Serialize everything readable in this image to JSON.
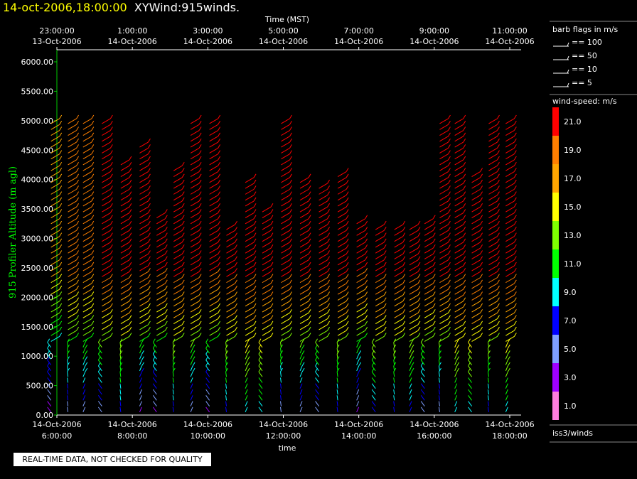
{
  "header": {
    "date": "14-oct-2006,18:00:00",
    "name": "XYWind:915winds."
  },
  "disclaimer": "REAL-TIME DATA, NOT CHECKED FOR QUALITY",
  "legend": {
    "barbs_title": "barb flags in m/s",
    "barbs": [
      "== 100",
      "== 50",
      "== 10",
      "== 5"
    ],
    "speed_title": "wind-speed: m/s",
    "speed_bins": [
      {
        "label": "21.0",
        "color": "#ff0000"
      },
      {
        "label": "19.0",
        "color": "#ff7f00"
      },
      {
        "label": "17.0",
        "color": "#ffa500"
      },
      {
        "label": "15.0",
        "color": "#ffff00"
      },
      {
        "label": "13.0",
        "color": "#7fff00"
      },
      {
        "label": "11.0",
        "color": "#00ff00"
      },
      {
        "label": "9.0",
        "color": "#00ffff"
      },
      {
        "label": "7.0",
        "color": "#0000ff"
      },
      {
        "label": "5.0",
        "color": "#7f9fff"
      },
      {
        "label": "3.0",
        "color": "#9f00ff"
      },
      {
        "label": "1.0",
        "color": "#ff7fdf"
      }
    ],
    "source": "iss3/winds"
  },
  "chart_data": {
    "type": "wind-barb time-height",
    "ylabel": "915 Profiler Altitude (m agl)",
    "xlabel": "time",
    "top_axis_title": "Time (MST)",
    "ylim": [
      0,
      6200
    ],
    "yticks": [
      "0.00",
      "500.00",
      "1000.00",
      "1500.00",
      "2000.00",
      "2500.00",
      "3000.00",
      "3500.00",
      "4000.00",
      "4500.00",
      "5000.00",
      "5500.00",
      "6000.00"
    ],
    "bottom_ticks": [
      {
        "date": "14-Oct-2006",
        "time": "6:00:00"
      },
      {
        "date": "14-Oct-2006",
        "time": "8:00:00"
      },
      {
        "date": "14-Oct-2006",
        "time": "10:00:00"
      },
      {
        "date": "14-Oct-2006",
        "time": "12:00:00"
      },
      {
        "date": "14-Oct-2006",
        "time": "14:00:00"
      },
      {
        "date": "14-Oct-2006",
        "time": "16:00:00"
      },
      {
        "date": "14-Oct-2006",
        "time": "18:00:00"
      }
    ],
    "top_ticks": [
      {
        "time": "23:00:00",
        "date": "13-Oct-2006"
      },
      {
        "time": "1:00:00",
        "date": "14-Oct-2006"
      },
      {
        "time": "3:00:00",
        "date": "14-Oct-2006"
      },
      {
        "time": "5:00:00",
        "date": "14-Oct-2006"
      },
      {
        "time": "7:00:00",
        "date": "14-Oct-2006"
      },
      {
        "time": "9:00:00",
        "date": "14-Oct-2006"
      },
      {
        "time": "11:00:00",
        "date": "14-Oct-2006"
      }
    ],
    "profiles": [
      {
        "t": 5.9,
        "top": 4950,
        "speed_lo": 3,
        "speed_hi": 17
      },
      {
        "t": 6.35,
        "top": 4950,
        "speed_lo": 5,
        "speed_hi": 19
      },
      {
        "t": 6.75,
        "top": 4950,
        "speed_lo": 5,
        "speed_hi": 19
      },
      {
        "t": 7.25,
        "top": 4950,
        "speed_lo": 5,
        "speed_hi": 21
      },
      {
        "t": 7.75,
        "top": 4300,
        "speed_lo": 7,
        "speed_hi": 21
      },
      {
        "t": 8.25,
        "top": 4600,
        "speed_lo": 3,
        "speed_hi": 21
      },
      {
        "t": 8.7,
        "top": 3400,
        "speed_lo": 3,
        "speed_hi": 21
      },
      {
        "t": 9.15,
        "top": 4200,
        "speed_lo": 7,
        "speed_hi": 21
      },
      {
        "t": 9.6,
        "top": 4950,
        "speed_lo": 5,
        "speed_hi": 21
      },
      {
        "t": 10.1,
        "top": 4950,
        "speed_lo": 3,
        "speed_hi": 21
      },
      {
        "t": 10.55,
        "top": 3200,
        "speed_lo": 7,
        "speed_hi": 21
      },
      {
        "t": 11.05,
        "top": 4000,
        "speed_lo": 9,
        "speed_hi": 21
      },
      {
        "t": 11.5,
        "top": 3500,
        "speed_lo": 9,
        "speed_hi": 21
      },
      {
        "t": 12.0,
        "top": 4950,
        "speed_lo": 5,
        "speed_hi": 21
      },
      {
        "t": 12.5,
        "top": 4000,
        "speed_lo": 5,
        "speed_hi": 21
      },
      {
        "t": 13.0,
        "top": 3900,
        "speed_lo": 5,
        "speed_hi": 21
      },
      {
        "t": 13.5,
        "top": 4100,
        "speed_lo": 7,
        "speed_hi": 21
      },
      {
        "t": 14.0,
        "top": 3250,
        "speed_lo": 3,
        "speed_hi": 21
      },
      {
        "t": 14.5,
        "top": 3150,
        "speed_lo": 7,
        "speed_hi": 21
      },
      {
        "t": 15.0,
        "top": 3150,
        "speed_lo": 7,
        "speed_hi": 21
      },
      {
        "t": 15.4,
        "top": 3200,
        "speed_lo": 7,
        "speed_hi": 21
      },
      {
        "t": 15.8,
        "top": 3300,
        "speed_lo": 5,
        "speed_hi": 21
      },
      {
        "t": 16.2,
        "top": 4950,
        "speed_lo": 5,
        "speed_hi": 21
      },
      {
        "t": 16.6,
        "top": 4950,
        "speed_lo": 9,
        "speed_hi": 21
      },
      {
        "t": 17.05,
        "top": 4100,
        "speed_lo": 9,
        "speed_hi": 21
      },
      {
        "t": 17.5,
        "top": 4950,
        "speed_lo": 7,
        "speed_hi": 21
      },
      {
        "t": 17.95,
        "top": 4950,
        "speed_lo": 9,
        "speed_hi": 21
      }
    ],
    "speed_colors": {
      "1": "#ff7fdf",
      "3": "#9f00ff",
      "5": "#7f9fff",
      "7": "#0000ff",
      "9": "#00ffff",
      "11": "#00ff00",
      "13": "#7fff00",
      "15": "#ffff00",
      "17": "#ffa500",
      "19": "#ff7f00",
      "21": "#ff0000"
    }
  }
}
